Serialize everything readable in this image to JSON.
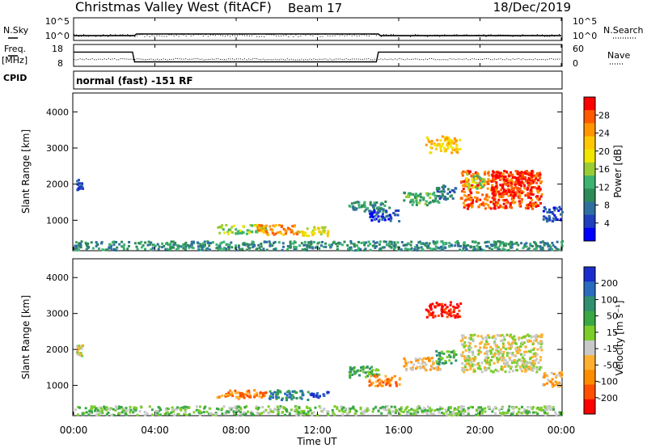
{
  "header": {
    "station": "Christmas Valley West (fitACF)",
    "beam": "Beam 17",
    "date": "18/Dec/2019"
  },
  "mode_text": "normal (fast) -151 RF",
  "labels": {
    "nsky": "N.Sky",
    "nsearch": "N.Search",
    "freq": "Freq.",
    "mhz": "[MHz]",
    "nave": "Nave",
    "cpid": "CPID",
    "x_axis": "Time UT",
    "slant_range": "Slant Range [km]",
    "power": "Power [dB]",
    "velocity": "Velocity [m s⁻¹]"
  },
  "noise_ticks": [
    "10^5",
    "10^0"
  ],
  "noise_ticks_right": [
    "10^5",
    "10^0"
  ],
  "freq_ticks": [
    "18",
    "8"
  ],
  "nave_ticks": [
    "60",
    "0"
  ],
  "time_ticks": [
    "00:00",
    "04:00",
    "08:00",
    "12:00",
    "16:00",
    "20:00",
    "00:00"
  ],
  "range_ticks": [
    "4000",
    "3000",
    "2000",
    "1000"
  ],
  "power_scale": {
    "labels": [
      "28",
      "24",
      "20",
      "16",
      "12",
      "8",
      "4"
    ],
    "colors": [
      "#ff0000",
      "#ff5a00",
      "#ff9600",
      "#ffc800",
      "#f0e600",
      "#9acd32",
      "#3cb371",
      "#2e8b57",
      "#2f6f9f",
      "#1f3fbf",
      "#0000ff"
    ]
  },
  "velocity_scale": {
    "labels": [
      "200",
      "100",
      "50",
      "15",
      "-15",
      "-50",
      "-100",
      "-200"
    ],
    "colors": [
      "#1a2dcc",
      "#2a6bbf",
      "#2f8f6f",
      "#39a844",
      "#7ccd2a",
      "#c8c8c8",
      "#ffb030",
      "#ff8c00",
      "#ff5000",
      "#ff0000"
    ]
  },
  "chart_data": [
    {
      "type": "line",
      "name": "noise",
      "x_range": [
        0,
        24
      ],
      "series": [
        {
          "x": [
            0,
            3,
            3.1,
            15,
            15.1,
            24
          ],
          "y": [
            0.35,
            0.35,
            0.5,
            0.5,
            0.35,
            0.35
          ]
        }
      ]
    },
    {
      "type": "line",
      "name": "frequency",
      "x_range": [
        0,
        24
      ],
      "series": [
        {
          "x": [
            0,
            2.9,
            3.0,
            14.9,
            15.0,
            24
          ],
          "y": [
            17.2,
            17.2,
            10.5,
            10.5,
            17.2,
            17.2
          ]
        }
      ]
    },
    {
      "type": "heatmap",
      "quantity": "power",
      "x_range": [
        0,
        24
      ],
      "ylim": [
        180,
        4500
      ],
      "patches": [
        {
          "t": [
            0.1,
            0.4
          ],
          "r": [
            1850,
            2150
          ],
          "level": 9
        },
        {
          "t": [
            0.0,
            24.0
          ],
          "r": [
            200,
            450
          ],
          "level": 7
        },
        {
          "t": [
            7.0,
            9.5
          ],
          "r": [
            650,
            900
          ],
          "level": 5
        },
        {
          "t": [
            9.0,
            11.0
          ],
          "r": [
            620,
            900
          ],
          "level": 2
        },
        {
          "t": [
            11.0,
            12.5
          ],
          "r": [
            600,
            850
          ],
          "level": 4
        },
        {
          "t": [
            13.5,
            15.5
          ],
          "r": [
            1250,
            1550
          ],
          "level": 7
        },
        {
          "t": [
            14.5,
            16.0
          ],
          "r": [
            1000,
            1300
          ],
          "level": 9
        },
        {
          "t": [
            16.2,
            18.0
          ],
          "r": [
            1450,
            1800
          ],
          "level": 6
        },
        {
          "t": [
            17.8,
            18.8
          ],
          "r": [
            1600,
            2000
          ],
          "level": 8
        },
        {
          "t": [
            17.3,
            19.0
          ],
          "r": [
            2900,
            3350
          ],
          "level": 3
        },
        {
          "t": [
            19.0,
            23.0
          ],
          "r": [
            1350,
            2400
          ],
          "level": 1
        },
        {
          "t": [
            20.5,
            22.5
          ],
          "r": [
            1700,
            2400
          ],
          "level": 0
        },
        {
          "t": [
            19.2,
            20.2
          ],
          "r": [
            1900,
            2300
          ],
          "level": 5
        },
        {
          "t": [
            23.0,
            24.0
          ],
          "r": [
            1000,
            1400
          ],
          "level": 9
        }
      ]
    },
    {
      "type": "heatmap",
      "quantity": "velocity",
      "x_range": [
        0,
        24
      ],
      "ylim": [
        180,
        4500
      ],
      "patches": [
        {
          "t": [
            0.1,
            0.4
          ],
          "r": [
            1850,
            2150
          ],
          "level": 5
        },
        {
          "t": [
            0.0,
            24.0
          ],
          "r": [
            200,
            450
          ],
          "level": 4
        },
        {
          "t": [
            7.0,
            9.5
          ],
          "r": [
            650,
            900
          ],
          "level": 7
        },
        {
          "t": [
            9.5,
            11.5
          ],
          "r": [
            620,
            900
          ],
          "level": 2
        },
        {
          "t": [
            11.5,
            12.5
          ],
          "r": [
            650,
            850
          ],
          "level": 0
        },
        {
          "t": [
            13.5,
            15.0
          ],
          "r": [
            1250,
            1550
          ],
          "level": 3
        },
        {
          "t": [
            14.5,
            16.0
          ],
          "r": [
            1000,
            1300
          ],
          "level": 7
        },
        {
          "t": [
            16.2,
            18.0
          ],
          "r": [
            1450,
            1800
          ],
          "level": 6
        },
        {
          "t": [
            17.8,
            18.8
          ],
          "r": [
            1600,
            2000
          ],
          "level": 3
        },
        {
          "t": [
            17.3,
            19.0
          ],
          "r": [
            2900,
            3350
          ],
          "level": 9
        },
        {
          "t": [
            19.0,
            23.0
          ],
          "r": [
            1400,
            2450
          ],
          "level": 5
        },
        {
          "t": [
            23.0,
            24.0
          ],
          "r": [
            1000,
            1400
          ],
          "level": 6
        }
      ]
    }
  ]
}
